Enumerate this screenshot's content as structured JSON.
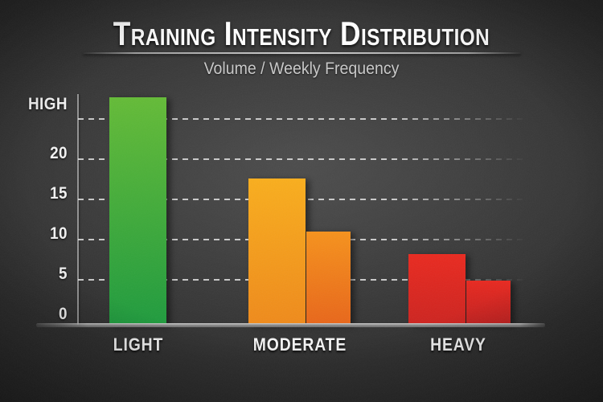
{
  "title": "Training Intensity Distribution",
  "subtitle": "Volume / Weekly Frequency",
  "chart_data": {
    "type": "bar",
    "title": "Training Intensity Distribution",
    "subtitle": "Volume / Weekly Frequency",
    "xlabel": "",
    "ylabel": "",
    "ylim": [
      0,
      28
    ],
    "grid": "dashed horizontal gridlines, gray on dark chalkboard background",
    "legend": "none",
    "yticks": [
      {
        "label": "HIGH",
        "value": 25
      },
      {
        "label": "20",
        "value": 20
      },
      {
        "label": "15",
        "value": 15
      },
      {
        "label": "10",
        "value": 10
      },
      {
        "label": "5",
        "value": 5
      },
      {
        "label": "0",
        "value": 0
      }
    ],
    "categories": [
      "LIGHT",
      "MODERATE",
      "HEAVY"
    ],
    "groups": [
      {
        "category": "LIGHT",
        "bars": [
          {
            "value": 27.7,
            "size": "wide",
            "color_top": "#64bb37",
            "color_bottom": "#1f9b3e"
          }
        ]
      },
      {
        "category": "MODERATE",
        "bars": [
          {
            "value": 17.6,
            "size": "wide",
            "color_top": "#f9ae1d",
            "color_bottom": "#ef8a1b"
          },
          {
            "value": 11.0,
            "size": "narrow",
            "color_top": "#f6921c",
            "color_bottom": "#e8661a"
          }
        ]
      },
      {
        "category": "HEAVY",
        "bars": [
          {
            "value": 8.2,
            "size": "wide",
            "color_top": "#e92a20",
            "color_bottom": "#cd2420"
          },
          {
            "value": 4.9,
            "size": "narrow",
            "color_top": "#e82920",
            "color_bottom": "#c22120"
          }
        ]
      }
    ],
    "colors": {
      "background_center": "#3a3a3a",
      "background_edge": "#101010",
      "text": "#ffffff",
      "subtitle_text": "#c9c9c9",
      "axis": "#a3a3a3",
      "green_bar": "#3fae3b",
      "orange_bar": "#f59e1c",
      "red_bar": "#d92620"
    }
  }
}
